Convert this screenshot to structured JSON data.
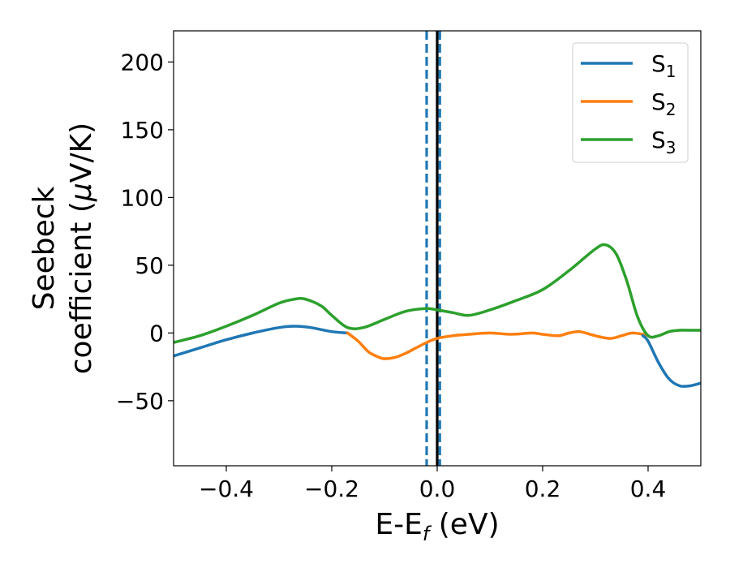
{
  "chart_data": {
    "type": "line",
    "title": "",
    "xlabel": "E-E",
    "xlabel_sub": "f",
    "xlabel_unit": " (eV)",
    "ylabel_line1": "Seebeck",
    "ylabel_line2": "coefficient  (",
    "ylabel_mu": "μ",
    "ylabel_unit": "V/K)",
    "xlim": [
      -0.5,
      0.5
    ],
    "ylim": [
      -98,
      223
    ],
    "xticks": [
      -0.4,
      -0.2,
      0.0,
      0.2,
      0.4
    ],
    "xtick_labels": [
      "−0.4",
      "−0.2",
      "0.0",
      "0.2",
      "0.4"
    ],
    "yticks": [
      -50,
      0,
      50,
      100,
      150,
      200
    ],
    "ytick_labels": [
      "−50",
      "0",
      "50",
      "100",
      "150",
      "200"
    ],
    "grid": false,
    "legend_position": "top-right",
    "vertical_lines": [
      {
        "x": -0.02,
        "style": "dashed",
        "color": "#1f77b4"
      },
      {
        "x": 0.005,
        "style": "dashed",
        "color": "#1f77b4"
      },
      {
        "x": 0.0,
        "style": "solid",
        "color": "#000000"
      }
    ],
    "series": [
      {
        "name": "S",
        "sub": "1",
        "color": "#1f77b4",
        "x": [
          -0.5,
          -0.45,
          -0.4,
          -0.35,
          -0.3,
          -0.27,
          -0.24,
          -0.2,
          -0.17
        ],
        "y": [
          -17,
          -11,
          -5,
          0,
          4,
          5,
          4,
          1,
          0
        ]
      },
      {
        "name": "S",
        "sub": "2",
        "color": "#ff7f0e",
        "x": [
          -0.17,
          -0.15,
          -0.13,
          -0.11,
          -0.1,
          -0.08,
          -0.06,
          -0.04,
          -0.02,
          0.0,
          0.03,
          0.06,
          0.1,
          0.14,
          0.18,
          0.2,
          0.23,
          0.25,
          0.27,
          0.29,
          0.31,
          0.33,
          0.35,
          0.37,
          0.39,
          0.4
        ],
        "y": [
          0,
          -6,
          -14,
          -18,
          -19,
          -18,
          -15,
          -11,
          -7,
          -4,
          -2,
          -1,
          0,
          -1,
          0,
          -1,
          -2,
          0,
          1,
          -1,
          -3,
          -4,
          -2,
          0,
          -1,
          -2
        ]
      },
      {
        "name": "S",
        "sub": "3",
        "color": "#2ca02c",
        "x": [
          -0.5,
          -0.45,
          -0.4,
          -0.35,
          -0.3,
          -0.27,
          -0.25,
          -0.22,
          -0.2,
          -0.17,
          -0.14,
          -0.1,
          -0.06,
          -0.02,
          0.0,
          0.03,
          0.06,
          0.1,
          0.15,
          0.2,
          0.25,
          0.3,
          0.32,
          0.34,
          0.36,
          0.38,
          0.4,
          0.42,
          0.44,
          0.46,
          0.48,
          0.5
        ],
        "y": [
          -7,
          -2,
          5,
          13,
          22,
          25,
          25,
          20,
          13,
          4,
          4,
          10,
          16,
          18,
          17,
          15,
          13,
          17,
          24,
          32,
          46,
          62,
          65,
          58,
          38,
          12,
          -2,
          -2,
          1,
          2,
          2,
          2
        ]
      },
      {
        "name": "",
        "sub": "",
        "color": "#1f77b4",
        "legend": false,
        "x": [
          0.39,
          0.4,
          0.42,
          0.44,
          0.46,
          0.48,
          0.5
        ],
        "y": [
          -2,
          -6,
          -22,
          -34,
          -39,
          -39,
          -37
        ]
      }
    ]
  }
}
